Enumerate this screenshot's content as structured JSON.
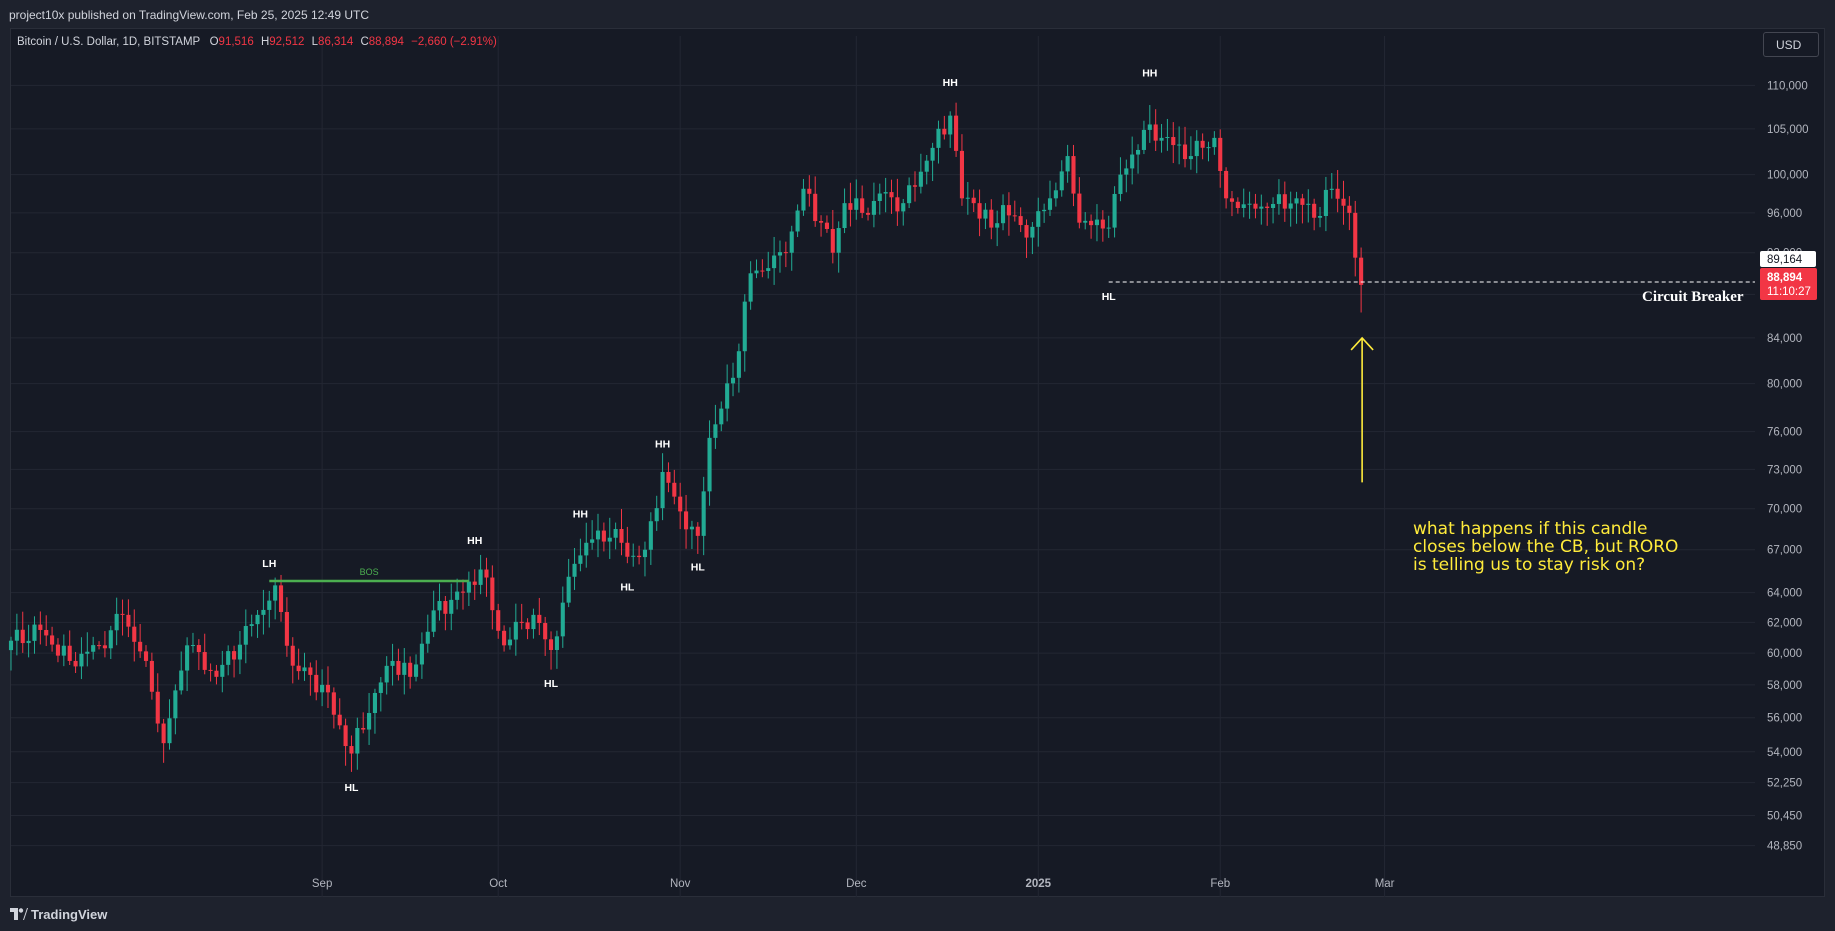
{
  "header": {
    "title": "project10x published on TradingView.com, Feb 25, 2025 12:49 UTC"
  },
  "legend": {
    "symbol": "Bitcoin / U.S. Dollar, 1D, BITSTAMP",
    "o_label": "O",
    "o_value": "91,516",
    "h_label": "H",
    "h_value": "92,512",
    "l_label": "L",
    "l_value": "86,314",
    "c_label": "C",
    "c_value": "88,894",
    "change": "−2,660 (−2.91%)"
  },
  "currency_button": "USD",
  "footer": {
    "brand": "TradingView"
  },
  "colors": {
    "up": "#22ab94",
    "down": "#f23645",
    "background": "#161a25",
    "bos_line": "#4caf50",
    "note_text": "#ffeb3b"
  },
  "chart_data": {
    "type": "candlestick",
    "y_scale": "log",
    "y_ticks": [
      110000,
      105000,
      100000,
      96000,
      92000,
      88000,
      84000,
      80000,
      76000,
      73000,
      70000,
      67000,
      64000,
      62000,
      60000,
      58000,
      56000,
      54000,
      52250,
      50450,
      48850
    ],
    "y_tick_labels": [
      "110,000",
      "105,000",
      "100,000",
      "96,000",
      "92,000",
      "88,000",
      "84,000",
      "80,000",
      "76,000",
      "73,000",
      "70,000",
      "67,000",
      "64,000",
      "62,000",
      "60,000",
      "58,000",
      "56,000",
      "54,000",
      "52,250",
      "50,450",
      "48,850"
    ],
    "x_ticks": [
      {
        "date": "2024-09-01",
        "label": "Sep"
      },
      {
        "date": "2024-10-01",
        "label": "Oct"
      },
      {
        "date": "2024-11-01",
        "label": "Nov"
      },
      {
        "date": "2024-12-01",
        "label": "Dec"
      },
      {
        "date": "2025-01-01",
        "label": "2025"
      },
      {
        "date": "2025-02-01",
        "label": "Feb"
      },
      {
        "date": "2025-03-01",
        "label": "Mar"
      }
    ],
    "x_range": [
      "2024-07-10",
      "2025-03-21"
    ],
    "y_range": [
      47700,
      113500
    ],
    "anchor_points": [
      [
        "2024-07-10",
        60800
      ],
      [
        "2024-07-15",
        61500
      ],
      [
        "2024-07-20",
        59500
      ],
      [
        "2024-07-25",
        60500
      ],
      [
        "2024-07-29",
        62500
      ],
      [
        "2024-08-02",
        59500
      ],
      [
        "2024-08-05",
        54500
      ],
      [
        "2024-08-09",
        60500
      ],
      [
        "2024-08-14",
        58500
      ],
      [
        "2024-08-21",
        62500
      ],
      [
        "2024-08-24",
        64500
      ],
      [
        "2024-08-27",
        59200
      ],
      [
        "2024-09-01",
        58000
      ],
      [
        "2024-09-06",
        53900
      ],
      [
        "2024-09-10",
        57500
      ],
      [
        "2024-09-13",
        59500
      ],
      [
        "2024-09-16",
        58500
      ],
      [
        "2024-09-20",
        62800
      ],
      [
        "2024-09-25",
        64000
      ],
      [
        "2024-09-28",
        65600
      ],
      [
        "2024-10-02",
        60500
      ],
      [
        "2024-10-05",
        62000
      ],
      [
        "2024-10-07",
        62500
      ],
      [
        "2024-10-10",
        60200
      ],
      [
        "2024-10-14",
        66000
      ],
      [
        "2024-10-16",
        67500
      ],
      [
        "2024-10-21",
        68500
      ],
      [
        "2024-10-23",
        66500
      ],
      [
        "2024-10-26",
        67000
      ],
      [
        "2024-10-29",
        72800
      ],
      [
        "2024-11-01",
        69800
      ],
      [
        "2024-11-04",
        68000
      ],
      [
        "2024-11-06",
        75500
      ],
      [
        "2024-11-10",
        80500
      ],
      [
        "2024-11-13",
        90000
      ],
      [
        "2024-11-16",
        90500
      ],
      [
        "2024-11-19",
        92000
      ],
      [
        "2024-11-22",
        98500
      ],
      [
        "2024-11-25",
        95000
      ],
      [
        "2024-11-27",
        92000
      ],
      [
        "2024-11-29",
        97000
      ],
      [
        "2024-12-03",
        95800
      ],
      [
        "2024-12-05",
        98000
      ],
      [
        "2024-12-09",
        97000
      ],
      [
        "2024-12-13",
        101500
      ],
      [
        "2024-12-17",
        106500
      ],
      [
        "2024-12-19",
        97500
      ],
      [
        "2024-12-21",
        97000
      ],
      [
        "2024-12-24",
        94500
      ],
      [
        "2024-12-26",
        96800
      ],
      [
        "2024-12-30",
        93500
      ],
      [
        "2025-01-03",
        97500
      ],
      [
        "2025-01-06",
        102000
      ],
      [
        "2025-01-08",
        95000
      ],
      [
        "2025-01-13",
        94500
      ],
      [
        "2025-01-15",
        100000
      ],
      [
        "2025-01-20",
        105500
      ],
      [
        "2025-01-22",
        104000
      ],
      [
        "2025-01-27",
        102000
      ],
      [
        "2025-01-31",
        104000
      ],
      [
        "2025-02-02",
        97500
      ],
      [
        "2025-02-04",
        96500
      ],
      [
        "2025-02-09",
        96500
      ],
      [
        "2025-02-14",
        97500
      ],
      [
        "2025-02-17",
        95500
      ],
      [
        "2025-02-20",
        98500
      ],
      [
        "2025-02-23",
        96000
      ],
      [
        "2025-02-24",
        91516
      ],
      [
        "2025-02-25",
        88894
      ]
    ],
    "last_candle": {
      "date": "2025-02-25",
      "open": 91516,
      "high": 92512,
      "low": 86314,
      "close": 88894
    },
    "circuit_breaker": {
      "value": 89164,
      "value_label": "89,164",
      "start_date": "2025-01-13",
      "label": "Circuit Breaker"
    },
    "price_tag": {
      "value_label": "88,894",
      "countdown": "11:10:27"
    },
    "bos": {
      "from_date": "2024-08-23",
      "to_date": "2024-09-26",
      "value": 64800,
      "label": "BOS"
    },
    "swing_labels": [
      {
        "text": "LH",
        "date": "2024-08-23",
        "value": 64800,
        "pos": "above"
      },
      {
        "text": "HL",
        "date": "2024-09-06",
        "value": 52800,
        "pos": "below"
      },
      {
        "text": "HH",
        "date": "2024-09-27",
        "value": 66400,
        "pos": "above"
      },
      {
        "text": "HL",
        "date": "2024-10-10",
        "value": 59000,
        "pos": "below"
      },
      {
        "text": "HH",
        "date": "2024-10-15",
        "value": 68300,
        "pos": "above"
      },
      {
        "text": "HL",
        "date": "2024-10-23",
        "value": 65400,
        "pos": "below"
      },
      {
        "text": "HH",
        "date": "2024-10-29",
        "value": 73600,
        "pos": "above"
      },
      {
        "text": "HL",
        "date": "2024-11-04",
        "value": 66800,
        "pos": "below"
      },
      {
        "text": "HH",
        "date": "2024-12-17",
        "value": 108300,
        "pos": "above"
      },
      {
        "text": "HL",
        "date": "2025-01-13",
        "value": 89164,
        "pos": "below"
      },
      {
        "text": "HH",
        "date": "2025-01-20",
        "value": 109400,
        "pos": "above"
      }
    ],
    "note": {
      "lines": [
        "what happens if this candle",
        "closes below the CB, but RORO",
        "is telling us to stay risk on?"
      ],
      "arrow_date": "2025-02-25",
      "arrow_from_value": 72000,
      "arrow_to_value": 84000
    }
  }
}
